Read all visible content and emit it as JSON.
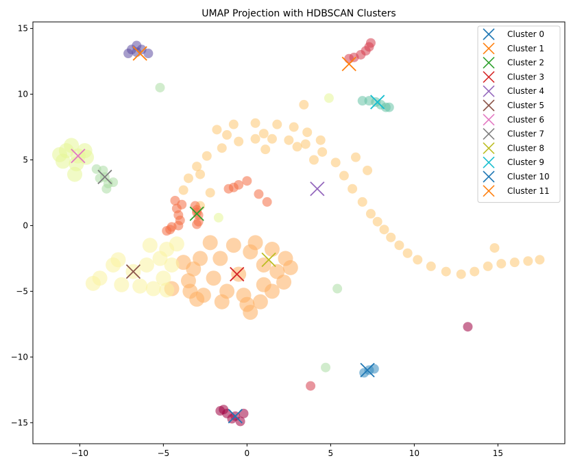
{
  "chart_data": {
    "type": "scatter",
    "title": "UMAP Projection with HDBSCAN Clusters",
    "xlabel": "",
    "ylabel": "",
    "xlim": [
      -12.8,
      19.0
    ],
    "ylim": [
      -16.6,
      15.5
    ],
    "xticks": [
      -10,
      -5,
      0,
      5,
      10,
      15
    ],
    "yticks": [
      -15,
      -10,
      -5,
      0,
      5,
      10,
      15
    ],
    "grid": false,
    "legend_position": "top-right",
    "point_colors": {
      "c0": "#9e0142",
      "c1": "#5e4fa2",
      "c2": "#d53e4f",
      "c3": "#66c2a5",
      "c4": "#3288bd",
      "c5": "#f46d43",
      "c6": "#e6f598",
      "c7": "#abdda4",
      "c8": "#fee08b",
      "c9": "#fdae61",
      "c10": "#fdc771",
      "c11": "#f9f3a0"
    },
    "point_groups": [
      {
        "color": "c10",
        "shape": "arc",
        "points": [
          [
            -3.8,
            2.7
          ],
          [
            -3.5,
            3.6
          ],
          [
            -3.0,
            4.5
          ],
          [
            -2.4,
            5.3
          ],
          [
            -1.5,
            5.9
          ],
          [
            -0.5,
            6.4
          ],
          [
            0.5,
            6.6
          ],
          [
            1.5,
            6.6
          ],
          [
            2.5,
            6.5
          ],
          [
            3.5,
            6.2
          ],
          [
            4.5,
            5.6
          ],
          [
            5.3,
            4.8
          ],
          [
            5.8,
            3.8
          ],
          [
            6.3,
            2.8
          ],
          [
            6.9,
            1.8
          ],
          [
            7.4,
            0.9
          ],
          [
            7.8,
            0.3
          ],
          [
            8.2,
            -0.3
          ],
          [
            8.6,
            -0.9
          ],
          [
            9.1,
            -1.5
          ],
          [
            9.6,
            -2.1
          ],
          [
            10.2,
            -2.6
          ],
          [
            11.0,
            -3.1
          ],
          [
            11.9,
            -3.5
          ],
          [
            12.8,
            -3.7
          ],
          [
            13.6,
            -3.5
          ],
          [
            14.4,
            -3.1
          ],
          [
            15.2,
            -2.9
          ],
          [
            16.0,
            -2.8
          ],
          [
            16.8,
            -2.7
          ],
          [
            17.5,
            -2.6
          ],
          [
            -1.8,
            7.3
          ],
          [
            -0.8,
            7.7
          ],
          [
            0.5,
            7.8
          ],
          [
            1.8,
            7.7
          ],
          [
            2.8,
            7.5
          ],
          [
            3.6,
            7.1
          ],
          [
            4.4,
            6.5
          ],
          [
            -1.2,
            6.9
          ],
          [
            1.0,
            7.0
          ],
          [
            3.0,
            6.0
          ],
          [
            -2.8,
            3.9
          ],
          [
            -2.2,
            2.5
          ],
          [
            -2.8,
            1.5
          ],
          [
            6.5,
            5.2
          ],
          [
            7.2,
            4.2
          ],
          [
            14.8,
            -1.7
          ],
          [
            3.4,
            9.2
          ],
          [
            1.1,
            5.8
          ],
          [
            4.0,
            5.0
          ]
        ]
      },
      {
        "color": "c9",
        "shape": "blob",
        "points": [
          [
            -0.5,
            -3.7
          ],
          [
            -1.6,
            -2.5
          ],
          [
            -2.0,
            -4.0
          ],
          [
            -1.2,
            -5.0
          ],
          [
            0.2,
            -2.0
          ],
          [
            1.0,
            -3.0
          ],
          [
            1.8,
            -3.5
          ],
          [
            1.0,
            -4.5
          ],
          [
            -0.2,
            -5.3
          ],
          [
            0.0,
            -6.0
          ],
          [
            -2.8,
            -2.5
          ],
          [
            -3.2,
            -3.3
          ],
          [
            -3.5,
            -4.2
          ],
          [
            -3.4,
            -5.0
          ],
          [
            -2.6,
            -5.3
          ],
          [
            -1.5,
            -5.8
          ],
          [
            -0.8,
            -1.5
          ],
          [
            0.5,
            -1.3
          ],
          [
            1.5,
            -1.8
          ],
          [
            2.3,
            -2.5
          ],
          [
            2.6,
            -3.2
          ],
          [
            2.2,
            -4.3
          ],
          [
            1.5,
            -5.0
          ],
          [
            0.8,
            -5.8
          ],
          [
            0.2,
            -6.6
          ],
          [
            -2.2,
            -1.3
          ],
          [
            -3.8,
            -2.8
          ],
          [
            -3.0,
            -5.6
          ],
          [
            -4.5,
            -4.8
          ]
        ]
      },
      {
        "color": "c11",
        "shape": "blob",
        "points": [
          [
            -6.8,
            -3.5
          ],
          [
            -8.8,
            -4.0
          ],
          [
            -8.0,
            -3.0
          ],
          [
            -7.5,
            -4.5
          ],
          [
            -6.0,
            -3.0
          ],
          [
            -5.2,
            -2.5
          ],
          [
            -5.0,
            -4.0
          ],
          [
            -4.8,
            -1.8
          ],
          [
            -4.2,
            -1.4
          ],
          [
            -5.6,
            -4.8
          ],
          [
            -6.4,
            -4.6
          ],
          [
            -7.7,
            -2.6
          ],
          [
            -9.2,
            -4.4
          ],
          [
            -4.5,
            -3.0
          ],
          [
            -4.8,
            -4.9
          ],
          [
            -5.8,
            -1.5
          ]
        ]
      },
      {
        "color": "c6",
        "shape": "blob",
        "points": [
          [
            -10.1,
            5.3
          ],
          [
            -10.8,
            5.7
          ],
          [
            -11.0,
            4.9
          ],
          [
            -10.5,
            6.1
          ],
          [
            -9.7,
            5.7
          ],
          [
            -10.2,
            4.7
          ],
          [
            -10.3,
            3.9
          ],
          [
            -9.6,
            5.2
          ],
          [
            -11.2,
            5.4
          ]
        ]
      },
      {
        "color": "c7",
        "shape": "blob",
        "points": [
          [
            -8.5,
            3.7
          ],
          [
            -9.0,
            4.3
          ],
          [
            -8.6,
            4.2
          ],
          [
            -8.3,
            3.2
          ],
          [
            -8.4,
            2.8
          ],
          [
            -8.8,
            3.6
          ],
          [
            -8.0,
            3.3
          ]
        ]
      },
      {
        "color": "c5",
        "shape": "line",
        "points": [
          [
            -4.8,
            -0.4
          ],
          [
            -4.5,
            -0.1
          ],
          [
            -4.1,
            0.0
          ],
          [
            -4.6,
            -0.3
          ],
          [
            -4.0,
            0.4
          ],
          [
            -4.2,
            1.3
          ],
          [
            -4.3,
            1.9
          ],
          [
            -4.1,
            0.8
          ],
          [
            -3.9,
            1.6
          ],
          [
            -3.0,
            1.2
          ],
          [
            -3.0,
            1.0
          ],
          [
            -2.9,
            0.8
          ],
          [
            -2.9,
            0.3
          ],
          [
            -3.0,
            0.1
          ],
          [
            -1.1,
            2.8
          ],
          [
            -0.5,
            3.1
          ],
          [
            0.0,
            3.4
          ],
          [
            -0.8,
            2.9
          ],
          [
            0.7,
            2.4
          ],
          [
            1.2,
            1.8
          ],
          [
            -3.1,
            1.5
          ]
        ]
      },
      {
        "color": "c0",
        "shape": "blob",
        "points": [
          [
            -0.7,
            -14.5
          ],
          [
            -1.6,
            -14.1
          ],
          [
            -1.2,
            -14.3
          ],
          [
            -0.9,
            -14.7
          ],
          [
            -0.4,
            -14.9
          ],
          [
            -1.4,
            -14.0
          ],
          [
            -0.2,
            -14.3
          ],
          [
            13.2,
            -7.7
          ]
        ]
      },
      {
        "color": "c1",
        "shape": "blob",
        "points": [
          [
            -6.6,
            13.2
          ],
          [
            -7.1,
            13.1
          ],
          [
            -6.6,
            13.7
          ],
          [
            -6.3,
            13.4
          ],
          [
            -5.9,
            13.1
          ],
          [
            -6.9,
            13.4
          ]
        ]
      },
      {
        "color": "c2",
        "shape": "line",
        "points": [
          [
            6.1,
            12.7
          ],
          [
            6.4,
            12.8
          ],
          [
            6.8,
            13.0
          ],
          [
            7.1,
            13.3
          ],
          [
            7.3,
            13.6
          ],
          [
            7.4,
            13.9
          ],
          [
            3.8,
            -12.2
          ]
        ]
      },
      {
        "color": "c3",
        "shape": "line",
        "points": [
          [
            6.9,
            9.5
          ],
          [
            7.3,
            9.5
          ],
          [
            7.7,
            9.4
          ],
          [
            8.0,
            9.2
          ],
          [
            8.3,
            9.0
          ],
          [
            8.5,
            9.0
          ]
        ]
      },
      {
        "color": "c4",
        "shape": "blob",
        "points": [
          [
            7.3,
            -11.0
          ],
          [
            7.0,
            -11.2
          ],
          [
            7.6,
            -10.9
          ]
        ]
      },
      {
        "color": "c7",
        "shape": "blob",
        "points": [
          [
            -5.2,
            10.5
          ],
          [
            5.4,
            -4.8
          ],
          [
            4.7,
            -10.8
          ]
        ]
      },
      {
        "color": "c6",
        "shape": "blob",
        "points": [
          [
            4.9,
            9.7
          ],
          [
            -1.7,
            0.6
          ]
        ]
      }
    ],
    "centroids": [
      {
        "name": "Cluster 0",
        "color": "#1f77b4",
        "x": -0.7,
        "y": -14.5
      },
      {
        "name": "Cluster 1",
        "color": "#ff7f0e",
        "x": -6.4,
        "y": 13.1
      },
      {
        "name": "Cluster 2",
        "color": "#2ca02c",
        "x": -3.0,
        "y": 0.9
      },
      {
        "name": "Cluster 3",
        "color": "#d62728",
        "x": -0.6,
        "y": -3.7
      },
      {
        "name": "Cluster 4",
        "color": "#9467bd",
        "x": 4.2,
        "y": 2.8
      },
      {
        "name": "Cluster 5",
        "color": "#8c564b",
        "x": -6.8,
        "y": -3.5
      },
      {
        "name": "Cluster 6",
        "color": "#e377c2",
        "x": -10.1,
        "y": 5.3
      },
      {
        "name": "Cluster 7",
        "color": "#7f7f7f",
        "x": -8.5,
        "y": 3.7
      },
      {
        "name": "Cluster 8",
        "color": "#bcbd22",
        "x": 1.3,
        "y": -2.6
      },
      {
        "name": "Cluster 9",
        "color": "#17becf",
        "x": 7.8,
        "y": 9.4
      },
      {
        "name": "Cluster 10",
        "color": "#1f77b4",
        "x": 7.2,
        "y": -11.0
      },
      {
        "name": "Cluster 11",
        "color": "#ff7f0e",
        "x": 6.1,
        "y": 12.3
      }
    ]
  }
}
